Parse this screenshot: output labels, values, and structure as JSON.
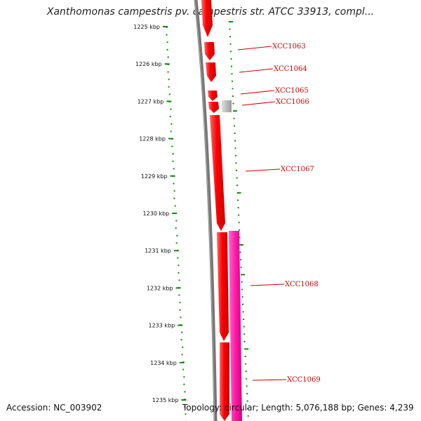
{
  "header": {
    "title": "Xanthomonas campestris pv. campestris str. ATCC 33913, compl..."
  },
  "footer": {
    "accession": "Accession: NC_003902",
    "summary": "Topology: circular; Length: 5,076,188 bp; Genes: 4,239"
  },
  "colors": {
    "backbone": "#777777",
    "cds": "#ff0000",
    "other_feature": "#ff1493",
    "pseudo": "#bbbbbb",
    "gc_track": "#118811",
    "label": "#cc0000"
  },
  "scale": {
    "ticks": [
      "1225 kbp",
      "1226 kbp",
      "1227 kbp",
      "1228 kbp",
      "1229 kbp",
      "1230 kbp",
      "1231 kbp",
      "1232 kbp",
      "1233 kbp",
      "1234 kbp",
      "1235 kbp"
    ]
  },
  "genes": [
    {
      "label": "XCC1063"
    },
    {
      "label": "XCC1064"
    },
    {
      "label": "XCC1065"
    },
    {
      "label": "XCC1066"
    },
    {
      "label": "XCC1067"
    },
    {
      "label": "XCC1068"
    },
    {
      "label": "XCC1069"
    }
  ]
}
